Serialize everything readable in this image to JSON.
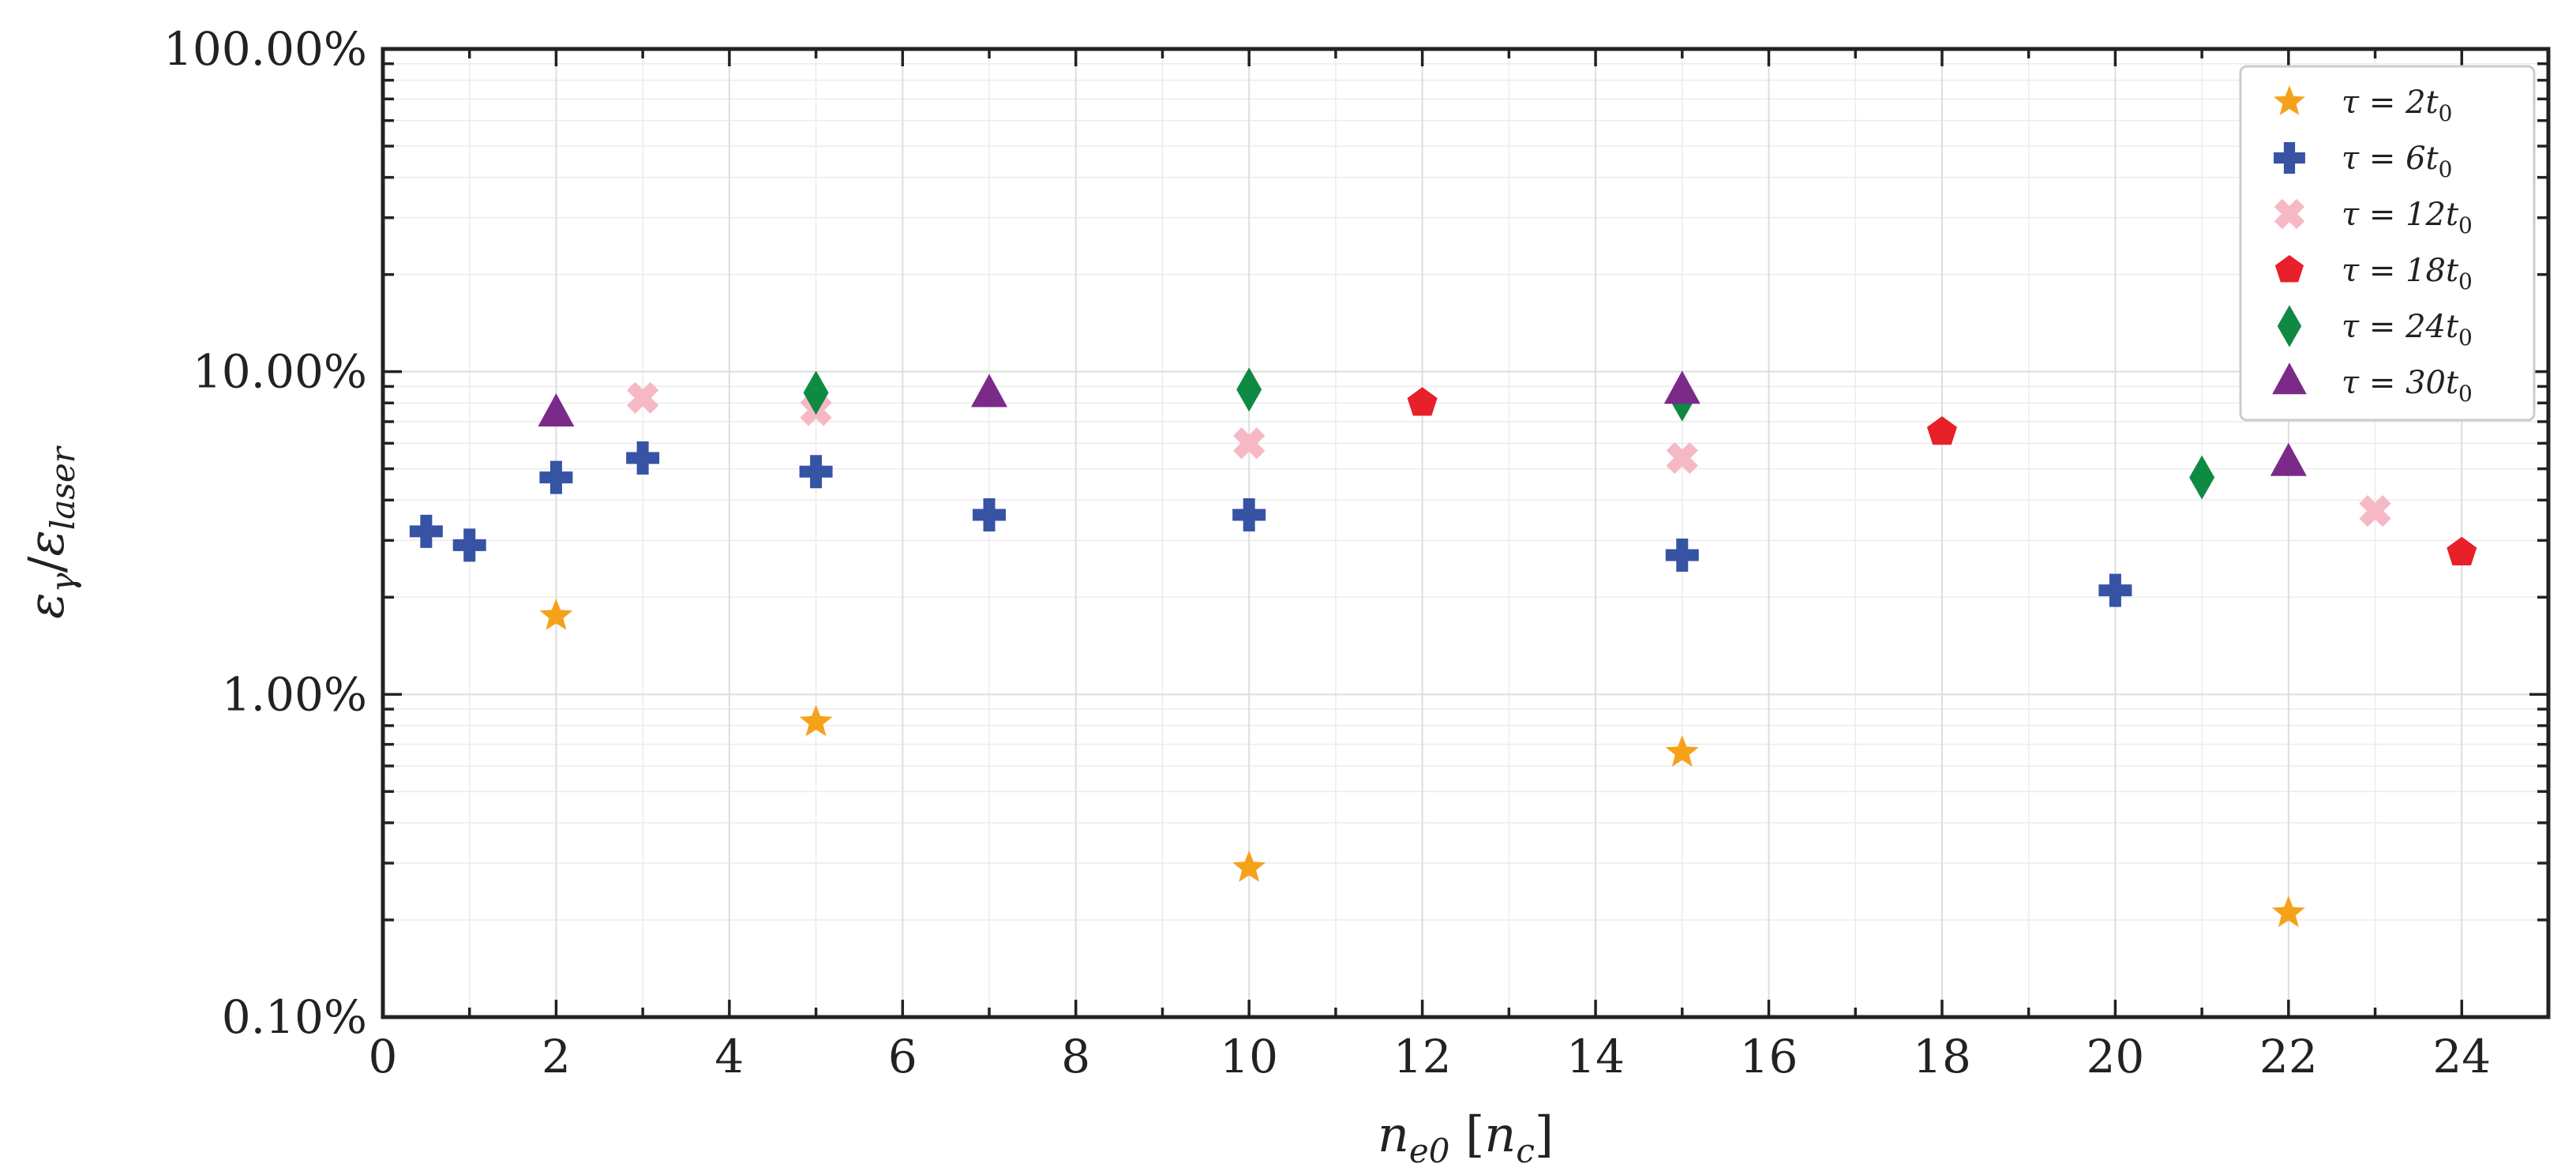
{
  "chart_data": {
    "type": "scatter",
    "title": "",
    "xlabel": "n_e0 [n_c]",
    "xlabel_parts": {
      "base": "n",
      "sub": "e0",
      "bracket_open": " [",
      "bracket_base": "n",
      "bracket_sub": "c",
      "bracket_close": "]"
    },
    "ylabel": "ε_γ/ε_laser",
    "ylabel_parts": {
      "num": "ε",
      "num_sub": "γ",
      "slash": "/",
      "den": "ε",
      "den_sub": "laser"
    },
    "xlim": [
      0,
      25
    ],
    "ylim": [
      0.1,
      100
    ],
    "yscale": "log",
    "grid": true,
    "legend_position": "top-right",
    "x_ticks": [
      0,
      2,
      4,
      6,
      8,
      10,
      12,
      14,
      16,
      18,
      20,
      22,
      24
    ],
    "x_tick_labels": [
      "0",
      "2",
      "4",
      "6",
      "8",
      "10",
      "12",
      "14",
      "16",
      "18",
      "20",
      "22",
      "24"
    ],
    "y_ticks": [
      0.1,
      1,
      10,
      100
    ],
    "y_tick_labels": [
      "0.10%",
      "1.00%",
      "10.00%",
      "100.00%"
    ],
    "series": [
      {
        "name": "τ = 2t0",
        "label_parts": {
          "lhs": "τ = 2t",
          "sub": "0"
        },
        "marker": "star",
        "color": "#F5A21B",
        "x": [
          2,
          5,
          10,
          15,
          22
        ],
        "y": [
          1.75,
          0.82,
          0.29,
          0.66,
          0.21
        ]
      },
      {
        "name": "τ = 6t0",
        "label_parts": {
          "lhs": "τ = 6t",
          "sub": "0"
        },
        "marker": "plus",
        "color": "#3653A4",
        "x": [
          0.5,
          1,
          2,
          3,
          5,
          7,
          10,
          15,
          20
        ],
        "y": [
          3.2,
          2.9,
          4.7,
          5.4,
          4.9,
          3.6,
          3.6,
          2.7,
          2.1
        ]
      },
      {
        "name": "τ = 12t0",
        "label_parts": {
          "lhs": "τ = 12t",
          "sub": "0"
        },
        "marker": "x",
        "color": "#F7B8C6",
        "x": [
          3,
          5,
          10,
          15,
          23
        ],
        "y": [
          8.3,
          7.6,
          6.0,
          5.4,
          3.7
        ]
      },
      {
        "name": "τ = 18t0",
        "label_parts": {
          "lhs": "τ = 18t",
          "sub": "0"
        },
        "marker": "pentagon",
        "color": "#E8202A",
        "x": [
          12,
          18,
          24
        ],
        "y": [
          8.0,
          6.5,
          2.75
        ]
      },
      {
        "name": "τ = 24t0",
        "label_parts": {
          "lhs": "τ = 24t",
          "sub": "0"
        },
        "marker": "diamond",
        "color": "#0F8A43",
        "x": [
          5,
          10,
          15,
          21
        ],
        "y": [
          8.6,
          8.8,
          8.2,
          4.7
        ]
      },
      {
        "name": "τ = 30t0",
        "label_parts": {
          "lhs": "τ = 30t",
          "sub": "0"
        },
        "marker": "triangle",
        "color": "#7B2A8A",
        "x": [
          2,
          7,
          15,
          22
        ],
        "y": [
          7.4,
          8.5,
          8.7,
          5.2
        ]
      }
    ]
  }
}
